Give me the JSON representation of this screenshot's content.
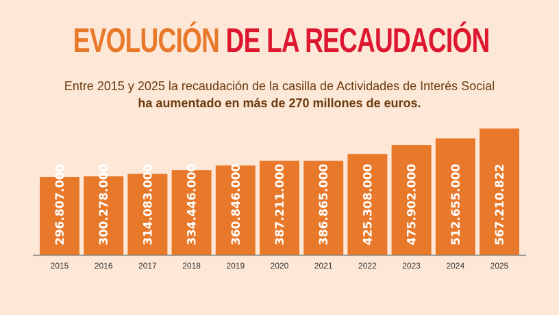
{
  "title": {
    "part1": "EVOLUCIÓN",
    "part2": "DE LA RECAUDACIÓN",
    "color1": "#E8782A",
    "color2": "#DE1730"
  },
  "subtitle": {
    "line1": "Entre 2015 y 2025 la recaudación de la casilla de Actividades de Interés Social",
    "line2": "ha aumentado en más de 270 millones de euros."
  },
  "chart_data": {
    "type": "bar",
    "categories": [
      "2015",
      "2016",
      "2017",
      "2018",
      "2019",
      "2020",
      "2021",
      "2022",
      "2023",
      "2024",
      "2025"
    ],
    "values": [
      296807000,
      300278000,
      314083000,
      334446000,
      360846000,
      387211000,
      386865000,
      425308000,
      475902000,
      512655000,
      567210822
    ],
    "data_labels": [
      "296.807.000",
      "300.278.000",
      "314.083.000",
      "334.446.000",
      "360.846.000",
      "387.211.000",
      "386.865.000",
      "425.308.000",
      "475.902.000",
      "512.655.000",
      "567.210.822"
    ],
    "bar_color": "#E8782A",
    "label_color": "#FFFFFF",
    "xlabel": "",
    "ylabel": "",
    "grid": false
  }
}
